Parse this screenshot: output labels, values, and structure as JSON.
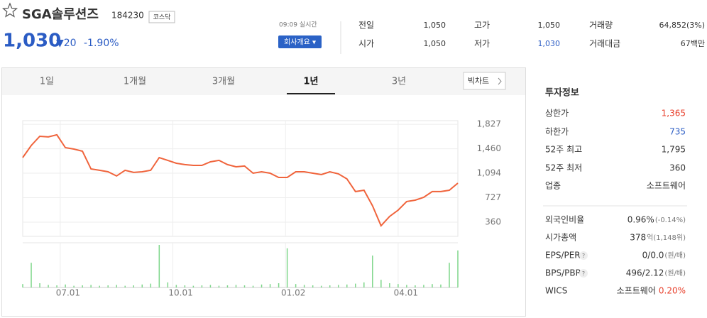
{
  "header": {
    "name": "SGA솔루션즈",
    "code": "184230",
    "market": "코스닥",
    "price": "1,030",
    "change": "▼20",
    "change_rate": "-1.90%",
    "time": "09:09 실시간",
    "company_button": "회사개요 ▾"
  },
  "quote": [
    {
      "label": "전일",
      "value": "1,050"
    },
    {
      "label": "고가",
      "value": "1,050"
    },
    {
      "label": "거래량",
      "value": "64,852(3%)"
    },
    {
      "label": "시가",
      "value": "1,050"
    },
    {
      "label": "저가",
      "value": "1,030"
    },
    {
      "label": "거래대금",
      "value": "67백만"
    }
  ],
  "tabs": [
    "1일",
    "1개월",
    "3개월",
    "1년",
    "3년"
  ],
  "selected_tab": 3,
  "bigchart_button": "빅차트",
  "chart": {
    "type": "line",
    "color": "#f0643c",
    "volume_color": "#7ed68a",
    "xlim": [
      0,
      51
    ],
    "xticks": [
      {
        "value": 4.4,
        "label": "07.01"
      },
      {
        "value": 17.6,
        "label": "10.01"
      },
      {
        "value": 30.8,
        "label": "01.02"
      },
      {
        "value": 44,
        "label": "04.01"
      }
    ],
    "ylim": [
      147,
      1881
    ],
    "yticks": [
      {
        "value": 1827,
        "label": "1,827"
      },
      {
        "value": 1460,
        "label": "1,460"
      },
      {
        "value": 1094,
        "label": "1,094"
      },
      727,
      360
    ],
    "values": [
      1328,
      1509,
      1647,
      1637,
      1669,
      1477,
      1456,
      1424,
      1158,
      1137,
      1115,
      1052,
      1137,
      1105,
      1115,
      1137,
      1328,
      1286,
      1243,
      1222,
      1211,
      1211,
      1264,
      1286,
      1222,
      1190,
      1201,
      1094,
      1115,
      1094,
      1030,
      1030,
      1115,
      1115,
      1094,
      1073,
      1115,
      1084,
      1009,
      818,
      839,
      605,
      307,
      445,
      541,
      669,
      690,
      732,
      818,
      818,
      839,
      945
    ],
    "volume": [
      8,
      58,
      10,
      6,
      5,
      7,
      4,
      5,
      6,
      4,
      5,
      6,
      4,
      5,
      7,
      9,
      100,
      12,
      6,
      5,
      4,
      5,
      6,
      4,
      5,
      6,
      5,
      4,
      7,
      8,
      10,
      92,
      8,
      6,
      5,
      4,
      5,
      6,
      7,
      9,
      12,
      75,
      18,
      10,
      8,
      6,
      5,
      6,
      8,
      7,
      58,
      87
    ]
  },
  "invest": {
    "title": "투자정보",
    "rows": [
      {
        "label": "상한가",
        "value": "1,365"
      },
      {
        "label": "하한가",
        "value": "735"
      },
      {
        "label": "52주 최고",
        "value": "1,795"
      },
      {
        "label": "52주 최저",
        "value": "360"
      },
      {
        "label": "업종",
        "value": "소프트웨어"
      },
      {
        "label": "외국인비율",
        "value": "0.96%",
        "note": "(-0.14%)"
      },
      {
        "label": "시가총액",
        "value": "378",
        "note": "억(1,148위)"
      },
      {
        "label": "EPS/PER",
        "help": "?",
        "value": "0/0.0",
        "note": "(원/배)"
      },
      {
        "label": "BPS/PBR",
        "help": "?",
        "value": "496/2.12",
        "note": "(원/배)"
      },
      {
        "label": "WICS",
        "value": "소프트웨어",
        "note": "0.20%"
      }
    ]
  }
}
